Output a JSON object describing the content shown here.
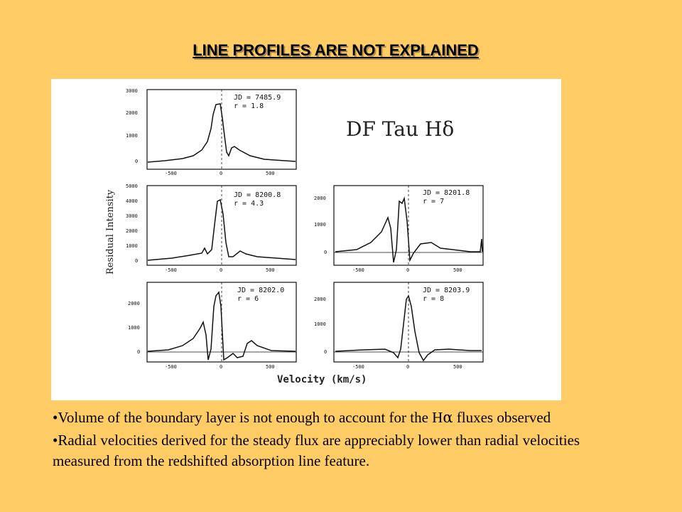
{
  "slide": {
    "title": "LINE PROFILES ARE NOT EXPLAINED",
    "bullets": [
      {
        "parts": [
          "Volume of the boundary layer is not enough to account for the  H",
          "α",
          "  fluxes observed"
        ]
      },
      {
        "parts": [
          "Radial velocities derived for the steady flux are appreciably lower than radial velocities measured from the redshifted absorption line feature."
        ]
      }
    ]
  },
  "figure": {
    "label": "DF  Tau  Hδ",
    "ylabel": "Residual Intensity",
    "xlabel": "Velocity (km/s)",
    "panels": [
      {
        "jd": "JD = 7485.9",
        "r": "r = 1.8",
        "yticks": [
          "3000",
          "2000",
          "1000",
          "0"
        ],
        "xticks": [
          "-500",
          "0",
          "500"
        ]
      },
      {
        "jd": "JD = 8200.8",
        "r": "r = 4.3",
        "yticks": [
          "5000",
          "4000",
          "3000",
          "2000",
          "1000",
          "0"
        ],
        "xticks": [
          "-500",
          "0",
          "500"
        ]
      },
      {
        "jd": "JD = 8201.8",
        "r": "r = 7",
        "yticks": [
          "2000",
          "1000",
          "0"
        ],
        "xticks": [
          "-500",
          "0",
          "500"
        ]
      },
      {
        "jd": "JD = 8202.0",
        "r": "r = 6",
        "yticks": [
          "2000",
          "1000",
          "0"
        ],
        "xticks": [
          "-500",
          "0",
          "500"
        ]
      },
      {
        "jd": "JD = 8203.9",
        "r": "r = 8",
        "yticks": [
          "2000",
          "1000",
          "0"
        ],
        "xticks": [
          "-500",
          "0",
          "500"
        ]
      }
    ]
  }
}
